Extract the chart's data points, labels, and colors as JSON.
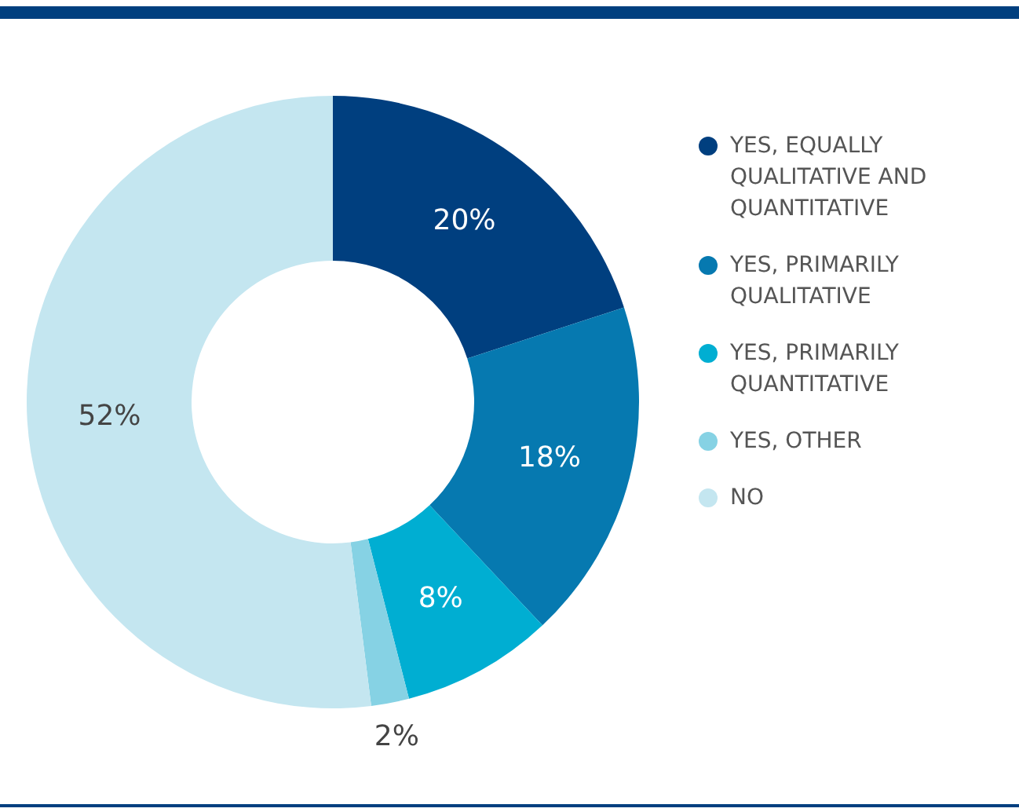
{
  "chart_data": {
    "type": "donut",
    "categories": [
      "YES, EQUALLY QUALITATIVE AND QUANTITATIVE",
      "YES, PRIMARILY QUALITATIVE",
      "YES, PRIMARILY QUANTITATIVE",
      "YES, OTHER",
      "NO"
    ],
    "values": [
      20,
      18,
      8,
      2,
      52
    ],
    "colors": [
      "#003f7f",
      "#0679b0",
      "#00aed2",
      "#86d2e4",
      "#c4e6f0"
    ],
    "value_labels": [
      "20%",
      "18%",
      "8%",
      "2%",
      "52%"
    ],
    "legend": "right"
  }
}
